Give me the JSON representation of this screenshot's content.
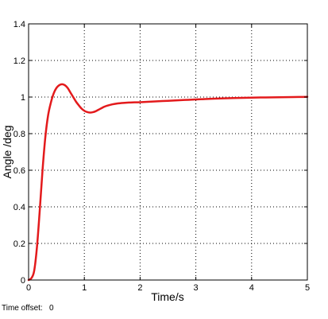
{
  "colors": {
    "series": "#e31a1c",
    "axes": "#000000",
    "grid": "#000000",
    "background": "#ffffff"
  },
  "footer": {
    "time_offset_label": "Time offset:",
    "time_offset_value": "0"
  },
  "chart_data": {
    "type": "line",
    "title": "",
    "xlabel": "Time/s",
    "ylabel": "Angle /deg",
    "xlim": [
      0,
      5
    ],
    "ylim": [
      0,
      1.4
    ],
    "grid": true,
    "x_ticks": [
      0,
      1,
      2,
      3,
      4,
      5
    ],
    "y_ticks": [
      0,
      0.2,
      0.4,
      0.6,
      0.8,
      1,
      1.2,
      1.4
    ],
    "x_tick_labels": [
      "0",
      "1",
      "2",
      "3",
      "4",
      "5"
    ],
    "y_tick_labels": [
      "0",
      "0.2",
      "0.4",
      "0.6",
      "0.8",
      "1",
      "1.2",
      "1.4"
    ],
    "series": [
      {
        "name": "Angle",
        "x": [
          0,
          0.05,
          0.1,
          0.15,
          0.2,
          0.25,
          0.3,
          0.35,
          0.4,
          0.45,
          0.5,
          0.55,
          0.6,
          0.65,
          0.7,
          0.75,
          0.8,
          0.85,
          0.9,
          0.95,
          1.0,
          1.05,
          1.1,
          1.15,
          1.2,
          1.25,
          1.3,
          1.35,
          1.4,
          1.5,
          1.6,
          1.7,
          1.8,
          1.9,
          2.0,
          2.2,
          2.4,
          2.6,
          2.8,
          3.0,
          3.25,
          3.5,
          3.75,
          4.0,
          4.25,
          4.5,
          4.75,
          5.0
        ],
        "values": [
          0,
          0.01,
          0.05,
          0.18,
          0.38,
          0.6,
          0.78,
          0.9,
          0.97,
          1.02,
          1.05,
          1.065,
          1.07,
          1.065,
          1.05,
          1.025,
          1.0,
          0.975,
          0.955,
          0.937,
          0.925,
          0.918,
          0.915,
          0.917,
          0.922,
          0.93,
          0.938,
          0.946,
          0.952,
          0.96,
          0.965,
          0.968,
          0.97,
          0.971,
          0.972,
          0.975,
          0.978,
          0.981,
          0.984,
          0.987,
          0.99,
          0.993,
          0.995,
          0.997,
          0.998,
          0.999,
          1.0,
          1.001
        ]
      }
    ]
  }
}
